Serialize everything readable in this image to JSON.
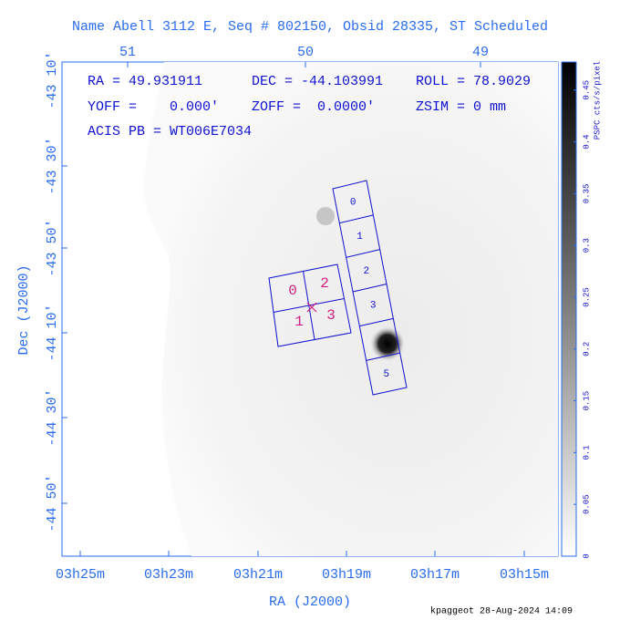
{
  "title": "Name Abell 3112 E, Seq # 802150, Obsid 28335, ST Scheduled",
  "top_ticks": [
    "51",
    "50",
    "49"
  ],
  "left_ticks": [
    "-43 10'",
    "-43 30'",
    "-43 50'",
    "-44 10'",
    "-44 30'",
    "-44 50'"
  ],
  "bottom_ticks": [
    "03h25m",
    "03h23m",
    "03h21m",
    "03h19m",
    "03h17m",
    "03h15m"
  ],
  "x_label": "RA (J2000)",
  "y_label": "Dec (J2000)",
  "info": [
    "RA = 49.931911",
    "DEC = -44.103991",
    "ROLL = 78.9029",
    "YOFF =    0.000'",
    "ZOFF =  0.0000'",
    "ZSIM = 0 mm",
    "ACIS PB = WT006E7034"
  ],
  "colorbar": {
    "label": "PSPC cts/s/pixel",
    "ticks": [
      "0",
      "0.05",
      "0.1",
      "0.15",
      "0.2",
      "0.25",
      "0.3",
      "0.35",
      "0.4",
      "0.45"
    ]
  },
  "acis_i_chips": [
    "0",
    "2",
    "1",
    "3"
  ],
  "acis_s_chips": [
    "0",
    "1",
    "2",
    "3",
    "5"
  ],
  "footer": "kpaggeot 28-Aug-2024 14:09"
}
